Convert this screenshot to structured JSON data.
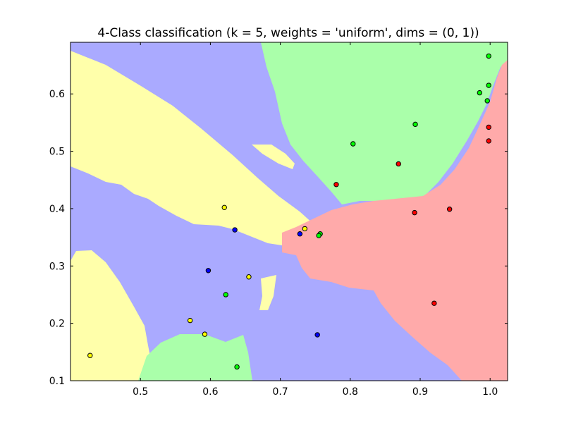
{
  "chart_data": {
    "type": "scatter",
    "title": "4-Class classification (k = 5, weights = 'uniform', dims = (0, 1))",
    "xlabel": "",
    "ylabel": "",
    "xlim": [
      0.4,
      1.025
    ],
    "ylim": [
      0.1,
      0.69
    ],
    "x_ticks": [
      0.5,
      0.6,
      0.7,
      0.8,
      0.9,
      1.0
    ],
    "y_ticks": [
      0.1,
      0.2,
      0.3,
      0.4,
      0.5,
      0.6
    ],
    "x_tick_labels": [
      "0.5",
      "0.6",
      "0.7",
      "0.8",
      "0.9",
      "1.0"
    ],
    "y_tick_labels": [
      "0.1",
      "0.2",
      "0.3",
      "0.4",
      "0.5",
      "0.6"
    ],
    "grid": false,
    "legend": "none",
    "region_colors": {
      "blue": "#aaaaff",
      "yellow": "#ffffaa",
      "green": "#aaffaa",
      "red": "#ffaaaa"
    },
    "series": [
      {
        "class": "blue",
        "color": "#0000ff",
        "points": [
          [
            0.635,
            0.363
          ],
          [
            0.728,
            0.356
          ],
          [
            0.597,
            0.292
          ],
          [
            0.753,
            0.18
          ]
        ]
      },
      {
        "class": "yellow",
        "color": "#ffff00",
        "points": [
          [
            0.62,
            0.402
          ],
          [
            0.735,
            0.365
          ],
          [
            0.655,
            0.281
          ],
          [
            0.571,
            0.205
          ],
          [
            0.592,
            0.181
          ],
          [
            0.428,
            0.144
          ]
        ]
      },
      {
        "class": "green",
        "color": "#00ff00",
        "points": [
          [
            0.998,
            0.666
          ],
          [
            0.998,
            0.615
          ],
          [
            0.985,
            0.602
          ],
          [
            0.996,
            0.588
          ],
          [
            0.893,
            0.547
          ],
          [
            0.804,
            0.513
          ],
          [
            0.757,
            0.356
          ],
          [
            0.755,
            0.353
          ],
          [
            0.622,
            0.25
          ],
          [
            0.638,
            0.124
          ]
        ]
      },
      {
        "class": "red",
        "color": "#ff0000",
        "points": [
          [
            0.998,
            0.542
          ],
          [
            0.998,
            0.518
          ],
          [
            0.869,
            0.478
          ],
          [
            0.78,
            0.442
          ],
          [
            0.942,
            0.399
          ],
          [
            0.892,
            0.393
          ],
          [
            0.92,
            0.235
          ]
        ]
      }
    ]
  }
}
